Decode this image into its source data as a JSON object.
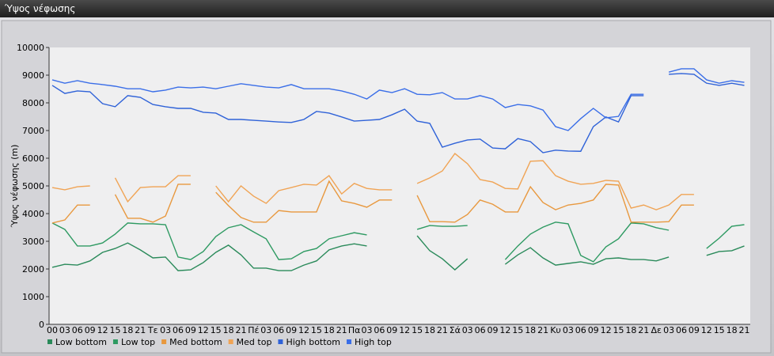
{
  "chart_data": {
    "type": "line",
    "title": "Ύψος νέφωσης",
    "y_label": "Ύψος νέφωσης (m)",
    "categories": [
      "00",
      "03",
      "06",
      "09",
      "12",
      "15",
      "18",
      "21",
      "Τε",
      "03",
      "06",
      "09",
      "12",
      "15",
      "18",
      "21",
      "Πέ",
      "03",
      "06",
      "09",
      "12",
      "15",
      "18",
      "21",
      "Πα",
      "03",
      "06",
      "09",
      "12",
      "15",
      "18",
      "21",
      "Σά",
      "03",
      "06",
      "09",
      "12",
      "15",
      "18",
      "21",
      "Κυ",
      "03",
      "06",
      "09",
      "12",
      "15",
      "18",
      "21",
      "Δε",
      "03",
      "06",
      "09",
      "12",
      "15",
      "18",
      "21"
    ],
    "ylim": [
      0,
      10000
    ],
    "yticks": [
      0,
      1000,
      2000,
      3000,
      4000,
      5000,
      6000,
      7000,
      8000,
      9000,
      10000
    ],
    "grid": false,
    "series": [
      {
        "name": "Low bottom",
        "color": "#2a8a5a",
        "values": [
          2060,
          2170,
          2140,
          2290,
          2600,
          2740,
          2940,
          2690,
          2400,
          2430,
          1940,
          1970,
          2230,
          2600,
          2860,
          2510,
          2030,
          2030,
          1940,
          1940,
          2140,
          2290,
          2690,
          2830,
          2910,
          2830,
          null,
          null,
          null,
          3200,
          2660,
          2370,
          1970,
          2370,
          null,
          null,
          2170,
          2510,
          2770,
          2400,
          2140,
          2200,
          2260,
          2170,
          2370,
          2400,
          2340,
          2340,
          2290,
          2430,
          null,
          null,
          2490,
          2630,
          2660,
          2830
        ]
      },
      {
        "name": "Low top",
        "color": "#2e9a62",
        "values": [
          3660,
          3430,
          2830,
          2830,
          2940,
          3260,
          3660,
          3630,
          3630,
          3600,
          2430,
          2340,
          2630,
          3170,
          3490,
          3600,
          3340,
          3090,
          2340,
          2370,
          2630,
          2740,
          3090,
          3200,
          3310,
          3230,
          null,
          null,
          null,
          3430,
          3570,
          3540,
          3540,
          3570,
          null,
          null,
          2340,
          2830,
          3260,
          3510,
          3690,
          3630,
          2490,
          2260,
          2800,
          3090,
          3660,
          3630,
          3490,
          3400,
          null,
          null,
          2740,
          3110,
          3540,
          3600
        ]
      },
      {
        "name": "Med bottom",
        "color": "#e8983e",
        "values": [
          3660,
          3770,
          4310,
          4310,
          null,
          4690,
          3830,
          3830,
          3690,
          3910,
          5060,
          5060,
          null,
          4770,
          4290,
          3860,
          3690,
          3690,
          4110,
          4060,
          4060,
          4060,
          5170,
          4460,
          4370,
          4230,
          4490,
          4490,
          null,
          4660,
          3710,
          3710,
          3690,
          3970,
          4490,
          4340,
          4060,
          4060,
          4970,
          4400,
          4140,
          4310,
          4370,
          4490,
          5060,
          5030,
          3690,
          3690,
          3690,
          3710,
          4310,
          4310,
          null,
          null,
          null,
          null
        ]
      },
      {
        "name": "Med top",
        "color": "#f0a455",
        "values": [
          4940,
          4860,
          4970,
          5000,
          null,
          5290,
          4430,
          4940,
          4970,
          4970,
          5370,
          5370,
          null,
          5000,
          4430,
          5000,
          4630,
          4370,
          4830,
          4940,
          5060,
          5030,
          5370,
          4710,
          5090,
          4910,
          4860,
          4860,
          null,
          5090,
          5290,
          5540,
          6170,
          5800,
          5230,
          5140,
          4910,
          4890,
          5890,
          5910,
          5370,
          5170,
          5060,
          5090,
          5200,
          5170,
          4200,
          4310,
          4140,
          4310,
          4690,
          4690,
          null,
          null,
          null,
          null
        ]
      },
      {
        "name": "High bottom",
        "color": "#2f62d8",
        "values": [
          8630,
          8340,
          8430,
          8400,
          7970,
          7860,
          8260,
          8200,
          7940,
          7860,
          7800,
          7800,
          7660,
          7630,
          7400,
          7400,
          7370,
          7340,
          7310,
          7290,
          7400,
          7690,
          7630,
          7490,
          7340,
          7370,
          7400,
          7570,
          7770,
          7340,
          7260,
          6400,
          6540,
          6660,
          6690,
          6370,
          6340,
          6710,
          6600,
          6200,
          6290,
          6260,
          6250,
          7140,
          7490,
          7310,
          8260,
          8260,
          null,
          9030,
          9060,
          9030,
          8710,
          8630,
          8710,
          8630
        ]
      },
      {
        "name": "High top",
        "color": "#3a6ee8",
        "values": [
          8830,
          8710,
          8800,
          8710,
          8660,
          8600,
          8510,
          8510,
          8400,
          8460,
          8570,
          8540,
          8570,
          8510,
          8600,
          8690,
          8630,
          8570,
          8540,
          8660,
          8510,
          8510,
          8510,
          8430,
          8310,
          8140,
          8460,
          8370,
          8510,
          8310,
          8290,
          8370,
          8140,
          8140,
          8260,
          8140,
          7830,
          7940,
          7890,
          7740,
          7140,
          7000,
          7430,
          7800,
          7460,
          7510,
          8310,
          8310,
          null,
          9110,
          9230,
          9230,
          8830,
          8710,
          8800,
          8740
        ]
      }
    ]
  }
}
